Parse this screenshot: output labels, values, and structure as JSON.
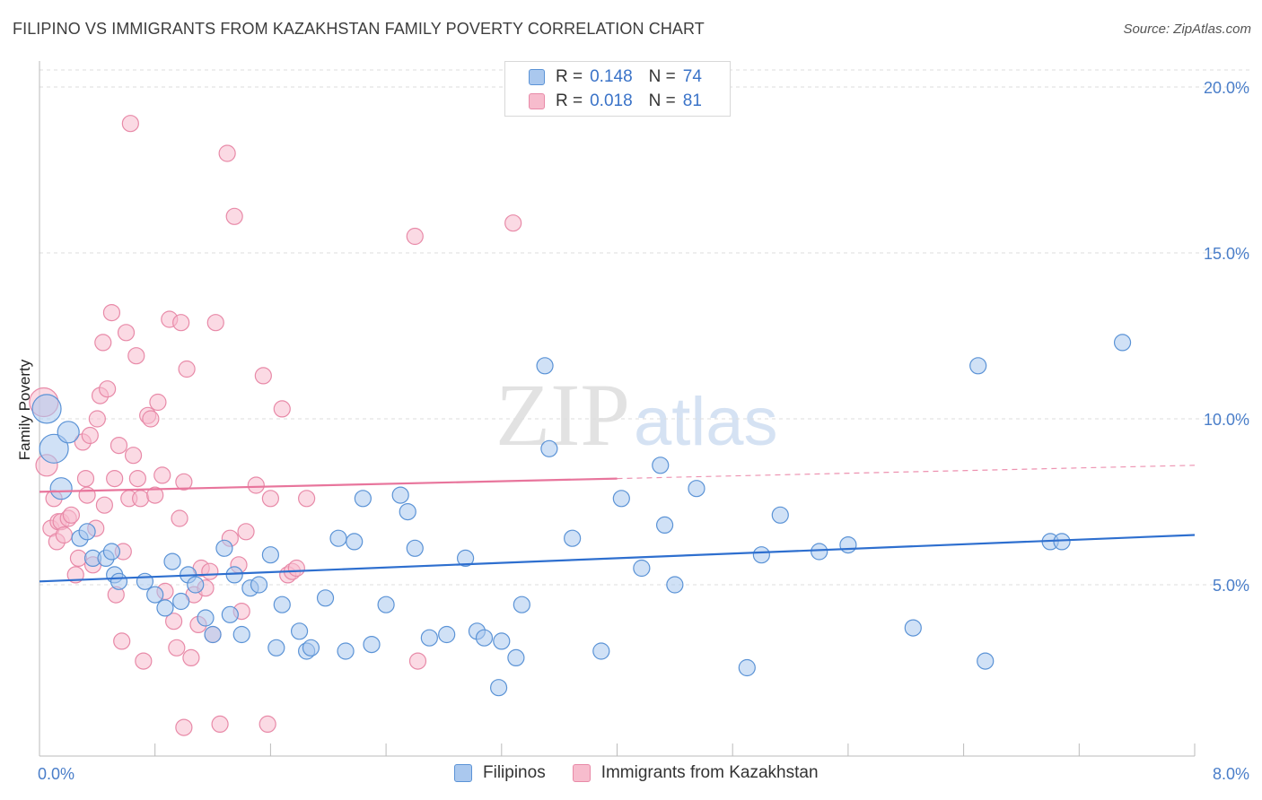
{
  "header": {
    "title": "FILIPINO VS IMMIGRANTS FROM KAZAKHSTAN FAMILY POVERTY CORRELATION CHART",
    "source": "Source: ZipAtlas.com"
  },
  "watermark": {
    "zip": "ZIP",
    "atlas": "atlas"
  },
  "legend": {
    "rows": [
      {
        "r_label": "R =",
        "r_value": "0.148",
        "n_label": "N =",
        "n_value": "74"
      },
      {
        "r_label": "R =",
        "r_value": "0.018",
        "n_label": "N =",
        "n_value": "81"
      }
    ]
  },
  "colors": {
    "blue_fill": "#aac8ee",
    "blue_stroke": "#5b93d6",
    "blue_line": "#2e6fcf",
    "pink_fill": "#f7bccd",
    "pink_stroke": "#e88aa8",
    "pink_line": "#e8759c",
    "grid": "#dddddd",
    "tick_text": "#4a7ec9"
  },
  "chart_data": {
    "type": "scatter",
    "title": "FILIPINO VS IMMIGRANTS FROM KAZAKHSTAN FAMILY POVERTY CORRELATION CHART",
    "xlabel": "",
    "ylabel": "Family Poverty",
    "xlim": [
      0,
      8
    ],
    "ylim": [
      0,
      20
    ],
    "x_tick_labels": [
      "0.0%",
      "8.0%"
    ],
    "y_ticks": [
      5,
      10,
      15,
      20
    ],
    "y_tick_labels": [
      "5.0%",
      "10.0%",
      "15.0%",
      "20.0%"
    ],
    "grid": true,
    "series": [
      {
        "name": "Filipinos",
        "color": "#5b93d6",
        "r": 0.148,
        "n": 74,
        "trend": {
          "x": [
            0,
            8
          ],
          "y": [
            5.1,
            6.5
          ],
          "dashed_from": null
        },
        "points": [
          [
            0.05,
            10.3,
            "L"
          ],
          [
            0.1,
            9.1,
            "L"
          ],
          [
            0.15,
            7.9,
            "M"
          ],
          [
            0.2,
            9.6,
            "M"
          ],
          [
            0.28,
            6.4
          ],
          [
            0.33,
            6.6
          ],
          [
            0.37,
            5.8
          ],
          [
            0.46,
            5.8
          ],
          [
            0.5,
            6.0
          ],
          [
            0.52,
            5.3
          ],
          [
            0.55,
            5.1
          ],
          [
            0.73,
            5.1
          ],
          [
            0.8,
            4.7
          ],
          [
            0.87,
            4.3
          ],
          [
            0.92,
            5.7
          ],
          [
            0.98,
            4.5
          ],
          [
            1.03,
            5.3
          ],
          [
            1.08,
            5.0
          ],
          [
            1.15,
            4.0
          ],
          [
            1.2,
            3.5
          ],
          [
            1.28,
            6.1
          ],
          [
            1.32,
            4.1
          ],
          [
            1.35,
            5.3
          ],
          [
            1.4,
            3.5
          ],
          [
            1.46,
            4.9
          ],
          [
            1.52,
            5.0
          ],
          [
            1.6,
            5.9
          ],
          [
            1.64,
            3.1
          ],
          [
            1.68,
            4.4
          ],
          [
            1.8,
            3.6
          ],
          [
            1.85,
            3.0
          ],
          [
            1.88,
            3.1
          ],
          [
            1.98,
            4.6
          ],
          [
            2.07,
            6.4
          ],
          [
            2.12,
            3.0
          ],
          [
            2.18,
            6.3
          ],
          [
            2.24,
            7.6
          ],
          [
            2.3,
            3.2
          ],
          [
            2.4,
            4.4
          ],
          [
            2.5,
            7.7
          ],
          [
            2.55,
            7.2
          ],
          [
            2.6,
            6.1
          ],
          [
            2.7,
            3.4
          ],
          [
            2.82,
            3.5
          ],
          [
            2.95,
            5.8
          ],
          [
            3.03,
            3.6
          ],
          [
            3.08,
            3.4
          ],
          [
            3.18,
            1.9
          ],
          [
            3.2,
            3.3
          ],
          [
            3.3,
            2.8
          ],
          [
            3.34,
            4.4
          ],
          [
            3.5,
            11.6
          ],
          [
            3.53,
            9.1
          ],
          [
            3.69,
            6.4
          ],
          [
            3.89,
            3.0
          ],
          [
            4.03,
            7.6
          ],
          [
            4.17,
            5.5
          ],
          [
            4.3,
            8.6
          ],
          [
            4.33,
            6.8
          ],
          [
            4.4,
            5.0
          ],
          [
            4.55,
            7.9
          ],
          [
            4.9,
            2.5
          ],
          [
            5.0,
            5.9
          ],
          [
            5.13,
            7.1
          ],
          [
            5.4,
            6.0
          ],
          [
            5.6,
            6.2
          ],
          [
            6.05,
            3.7
          ],
          [
            6.5,
            11.6
          ],
          [
            6.55,
            2.7
          ],
          [
            7.0,
            6.3
          ],
          [
            7.08,
            6.3
          ],
          [
            7.5,
            12.3
          ]
        ]
      },
      {
        "name": "Immigrants from Kazakhstan",
        "color": "#e88aa8",
        "r": 0.018,
        "n": 81,
        "trend": {
          "x": [
            0,
            8
          ],
          "y": [
            7.8,
            8.6
          ],
          "dashed_from": 4.0
        },
        "points": [
          [
            0.03,
            10.5,
            "L"
          ],
          [
            0.05,
            8.6,
            "M"
          ],
          [
            0.08,
            6.7
          ],
          [
            0.1,
            7.6
          ],
          [
            0.12,
            6.3
          ],
          [
            0.13,
            6.9
          ],
          [
            0.15,
            6.9
          ],
          [
            0.17,
            6.5
          ],
          [
            0.2,
            7.0
          ],
          [
            0.22,
            7.1
          ],
          [
            0.25,
            5.3
          ],
          [
            0.27,
            5.8
          ],
          [
            0.3,
            9.3
          ],
          [
            0.32,
            8.2
          ],
          [
            0.33,
            7.7
          ],
          [
            0.35,
            9.5
          ],
          [
            0.37,
            5.6
          ],
          [
            0.39,
            6.7
          ],
          [
            0.4,
            10.0
          ],
          [
            0.42,
            10.7
          ],
          [
            0.45,
            7.4
          ],
          [
            0.47,
            10.9
          ],
          [
            0.5,
            13.2
          ],
          [
            0.52,
            8.2
          ],
          [
            0.53,
            4.7
          ],
          [
            0.55,
            9.2
          ],
          [
            0.57,
            3.3
          ],
          [
            0.58,
            6.0
          ],
          [
            0.6,
            12.6
          ],
          [
            0.62,
            7.6
          ],
          [
            0.63,
            18.9
          ],
          [
            0.65,
            8.9
          ],
          [
            0.67,
            11.9
          ],
          [
            0.68,
            8.2
          ],
          [
            0.7,
            7.6
          ],
          [
            0.72,
            2.7
          ],
          [
            0.75,
            10.1
          ],
          [
            0.77,
            10.0
          ],
          [
            0.8,
            7.7
          ],
          [
            0.82,
            10.5
          ],
          [
            0.85,
            8.3
          ],
          [
            0.87,
            4.8
          ],
          [
            0.9,
            13.0
          ],
          [
            0.93,
            3.9
          ],
          [
            0.95,
            3.1
          ],
          [
            0.97,
            7.0
          ],
          [
            1.0,
            8.1
          ],
          [
            1.02,
            11.5
          ],
          [
            1.05,
            2.8
          ],
          [
            1.07,
            4.7
          ],
          [
            1.1,
            3.8
          ],
          [
            1.12,
            5.5
          ],
          [
            1.15,
            4.9
          ],
          [
            1.18,
            5.4
          ],
          [
            1.2,
            3.5
          ],
          [
            1.22,
            12.9
          ],
          [
            1.25,
            0.8
          ],
          [
            1.3,
            18.0
          ],
          [
            1.32,
            6.4
          ],
          [
            1.35,
            16.1
          ],
          [
            1.38,
            5.6
          ],
          [
            1.4,
            4.2
          ],
          [
            1.43,
            6.6
          ],
          [
            1.5,
            8.0
          ],
          [
            1.55,
            11.3
          ],
          [
            1.58,
            0.8
          ],
          [
            1.6,
            7.6
          ],
          [
            1.68,
            10.3
          ],
          [
            1.72,
            5.3
          ],
          [
            1.75,
            5.4
          ],
          [
            1.78,
            5.5
          ],
          [
            1.85,
            7.6
          ],
          [
            2.6,
            15.5
          ],
          [
            2.62,
            2.7
          ],
          [
            3.28,
            15.9
          ],
          [
            1.0,
            0.7
          ],
          [
            0.98,
            12.9
          ],
          [
            0.44,
            12.3
          ]
        ]
      }
    ]
  }
}
